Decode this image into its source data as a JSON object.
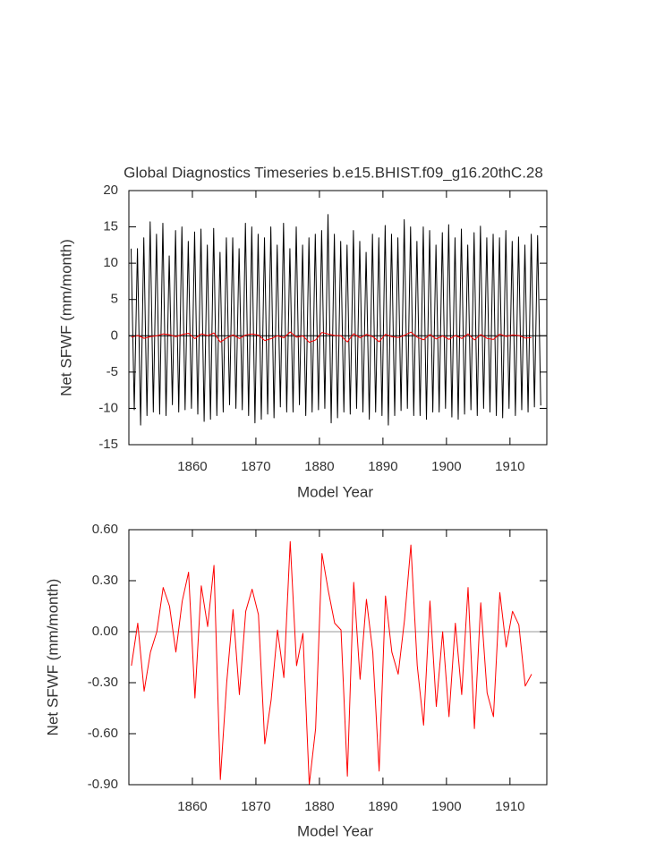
{
  "chart_data": [
    {
      "type": "line",
      "title": "Global Diagnostics Timeseries b.e15.BHIST.f09_g16.20thC.28",
      "xlabel": "Model Year",
      "ylabel": "Net SFWF (mm/month)",
      "xlim": [
        1850,
        1915.8
      ],
      "ylim": [
        -15,
        20
      ],
      "xticks": [
        1860,
        1870,
        1880,
        1890,
        1900,
        1910
      ],
      "yticks": [
        -15,
        -10,
        -5,
        0,
        5,
        10,
        15,
        20
      ],
      "reference_line": {
        "value": 0,
        "color": "#000000"
      },
      "series": [
        {
          "color": "#000000",
          "x": [
            1850.35,
            1850.85,
            1851.35,
            1851.85,
            1852.35,
            1852.85,
            1853.35,
            1853.85,
            1854.35,
            1854.85,
            1855.35,
            1855.85,
            1856.35,
            1856.85,
            1857.35,
            1857.85,
            1858.35,
            1858.85,
            1859.35,
            1859.85,
            1860.35,
            1860.85,
            1861.35,
            1861.85,
            1862.35,
            1862.85,
            1863.35,
            1863.85,
            1864.35,
            1864.85,
            1865.35,
            1865.85,
            1866.35,
            1866.85,
            1867.35,
            1867.85,
            1868.35,
            1868.85,
            1869.35,
            1869.85,
            1870.35,
            1870.85,
            1871.35,
            1871.85,
            1872.35,
            1872.85,
            1873.35,
            1873.85,
            1874.35,
            1874.85,
            1875.35,
            1875.85,
            1876.35,
            1876.85,
            1877.35,
            1877.85,
            1878.35,
            1878.85,
            1879.35,
            1879.85,
            1880.35,
            1880.85,
            1881.35,
            1881.85,
            1882.35,
            1882.85,
            1883.35,
            1883.85,
            1884.35,
            1884.85,
            1885.35,
            1885.85,
            1886.35,
            1886.85,
            1887.35,
            1887.85,
            1888.35,
            1888.85,
            1889.35,
            1889.85,
            1890.35,
            1890.85,
            1891.35,
            1891.85,
            1892.35,
            1892.85,
            1893.35,
            1893.85,
            1894.35,
            1894.85,
            1895.35,
            1895.85,
            1896.35,
            1896.85,
            1897.35,
            1897.85,
            1898.35,
            1898.85,
            1899.35,
            1899.85,
            1900.35,
            1900.85,
            1901.35,
            1901.85,
            1902.35,
            1902.85,
            1903.35,
            1903.85,
            1904.35,
            1904.85,
            1905.35,
            1905.85,
            1906.35,
            1906.85,
            1907.35,
            1907.85,
            1908.35,
            1908.85,
            1909.35,
            1909.85,
            1910.35,
            1910.85,
            1911.35,
            1911.85,
            1912.35,
            1912.85,
            1913.35,
            1913.85,
            1914.35,
            1914.85
          ],
          "values": [
            12,
            -10.2,
            12,
            -12.3,
            13.5,
            -11,
            15.7,
            -10.5,
            14,
            -10.8,
            15.5,
            -11,
            11,
            -9.5,
            14.5,
            -10.5,
            15,
            -10.2,
            13,
            -10,
            14.3,
            -10.8,
            14.7,
            -11.8,
            12.5,
            -11.5,
            14.8,
            -11,
            11.5,
            -10.5,
            13.5,
            -9.5,
            13.5,
            -10,
            12,
            -10.2,
            15.5,
            -11,
            15,
            -12,
            14,
            -11.5,
            13.5,
            -10.8,
            15,
            -11.3,
            12.5,
            -9.8,
            15.5,
            -10.5,
            12,
            -10.5,
            15,
            -9.5,
            12.5,
            -11,
            13.5,
            -10.5,
            14,
            -10.2,
            14.5,
            -10,
            16.7,
            -12,
            14,
            -11.3,
            13,
            -10.5,
            12.5,
            -10.8,
            14.5,
            -10,
            13,
            -10.5,
            11.5,
            -11.5,
            14,
            -10.5,
            13.5,
            -11,
            15.2,
            -12.3,
            14,
            -11,
            13.5,
            -10.3,
            16,
            -10,
            15,
            -11,
            13,
            -11,
            15,
            -11.5,
            14.5,
            -10.5,
            12.5,
            -10.5,
            14.2,
            -10,
            15.3,
            -11.2,
            13.5,
            -11.5,
            14.7,
            -10.8,
            12.5,
            -10.2,
            14.2,
            -11,
            15.1,
            -10,
            13.5,
            -10.5,
            14,
            -11,
            13.5,
            -11.3,
            14.5,
            -10,
            13,
            -11,
            13.6,
            -10.2,
            12.5,
            -10.5,
            14,
            -9.8,
            13.8,
            -9.6
          ]
        },
        {
          "color": "#ff0000",
          "x": [
            1850.4,
            1851.4,
            1852.4,
            1853.4,
            1854.4,
            1855.4,
            1856.4,
            1857.4,
            1858.4,
            1859.4,
            1860.4,
            1861.4,
            1862.4,
            1863.4,
            1864.4,
            1865.4,
            1866.4,
            1867.4,
            1868.4,
            1869.4,
            1870.4,
            1871.4,
            1872.4,
            1873.4,
            1874.4,
            1875.4,
            1876.4,
            1877.4,
            1878.4,
            1879.4,
            1880.4,
            1881.4,
            1882.4,
            1883.4,
            1884.4,
            1885.4,
            1886.4,
            1887.4,
            1888.4,
            1889.4,
            1890.4,
            1891.4,
            1892.4,
            1893.4,
            1894.4,
            1895.4,
            1896.4,
            1897.4,
            1898.4,
            1899.4,
            1900.4,
            1901.4,
            1902.4,
            1903.4,
            1904.4,
            1905.4,
            1906.4,
            1907.4,
            1908.4,
            1909.4,
            1910.4,
            1911.4,
            1912.4,
            1913.4
          ],
          "values": [
            -0.2,
            0.05,
            -0.35,
            -0.12,
            0,
            0.26,
            0.15,
            -0.12,
            0.18,
            0.35,
            -0.39,
            0.27,
            0.03,
            0.39,
            -0.87,
            -0.3,
            0.13,
            -0.37,
            0.12,
            0.25,
            0.1,
            -0.66,
            -0.4,
            0.01,
            -0.27,
            0.53,
            -0.2,
            -0.01,
            -0.9,
            -0.57,
            0.46,
            0.24,
            0.05,
            0.01,
            -0.85,
            0.29,
            -0.28,
            0.19,
            -0.12,
            -0.82,
            0.21,
            -0.12,
            -0.25,
            0.07,
            0.51,
            -0.2,
            -0.55,
            0.18,
            -0.44,
            0,
            -0.5,
            0.05,
            -0.37,
            0.26,
            -0.57,
            0.17,
            -0.36,
            -0.5,
            0.23,
            -0.09,
            0.12,
            0.04,
            -0.32,
            -0.25
          ]
        }
      ]
    },
    {
      "type": "line",
      "xlabel": "Model Year",
      "ylabel": "Net SFWF (mm/month)",
      "xlim": [
        1850,
        1915.8
      ],
      "ylim": [
        -0.9,
        0.6
      ],
      "xticks": [
        1860,
        1870,
        1880,
        1890,
        1900,
        1910
      ],
      "yticks": [
        {
          "value": -0.9,
          "label": "-0.90"
        },
        {
          "value": -0.6,
          "label": "-0.60"
        },
        {
          "value": -0.3,
          "label": "-0.30"
        },
        {
          "value": 0,
          "label": "0.00"
        },
        {
          "value": 0.3,
          "label": "0.30"
        },
        {
          "value": 0.6,
          "label": "0.60"
        }
      ],
      "reference_line": {
        "value": 0,
        "color": "#999999"
      },
      "series": [
        {
          "color": "#ff0000",
          "x": [
            1850.4,
            1851.4,
            1852.4,
            1853.4,
            1854.4,
            1855.4,
            1856.4,
            1857.4,
            1858.4,
            1859.4,
            1860.4,
            1861.4,
            1862.4,
            1863.4,
            1864.4,
            1865.4,
            1866.4,
            1867.4,
            1868.4,
            1869.4,
            1870.4,
            1871.4,
            1872.4,
            1873.4,
            1874.4,
            1875.4,
            1876.4,
            1877.4,
            1878.4,
            1879.4,
            1880.4,
            1881.4,
            1882.4,
            1883.4,
            1884.4,
            1885.4,
            1886.4,
            1887.4,
            1888.4,
            1889.4,
            1890.4,
            1891.4,
            1892.4,
            1893.4,
            1894.4,
            1895.4,
            1896.4,
            1897.4,
            1898.4,
            1899.4,
            1900.4,
            1901.4,
            1902.4,
            1903.4,
            1904.4,
            1905.4,
            1906.4,
            1907.4,
            1908.4,
            1909.4,
            1910.4,
            1911.4,
            1912.4,
            1913.4
          ],
          "values": [
            -0.2,
            0.05,
            -0.35,
            -0.12,
            0,
            0.26,
            0.15,
            -0.12,
            0.18,
            0.35,
            -0.39,
            0.27,
            0.03,
            0.39,
            -0.87,
            -0.3,
            0.13,
            -0.37,
            0.12,
            0.25,
            0.1,
            -0.66,
            -0.4,
            0.01,
            -0.27,
            0.53,
            -0.2,
            -0.01,
            -0.9,
            -0.57,
            0.46,
            0.24,
            0.05,
            0.01,
            -0.85,
            0.29,
            -0.28,
            0.19,
            -0.12,
            -0.82,
            0.21,
            -0.12,
            -0.25,
            0.07,
            0.51,
            -0.2,
            -0.55,
            0.18,
            -0.44,
            0,
            -0.5,
            0.05,
            -0.37,
            0.26,
            -0.57,
            0.17,
            -0.36,
            -0.5,
            0.23,
            -0.09,
            0.12,
            0.04,
            -0.32,
            -0.25
          ]
        }
      ]
    }
  ]
}
